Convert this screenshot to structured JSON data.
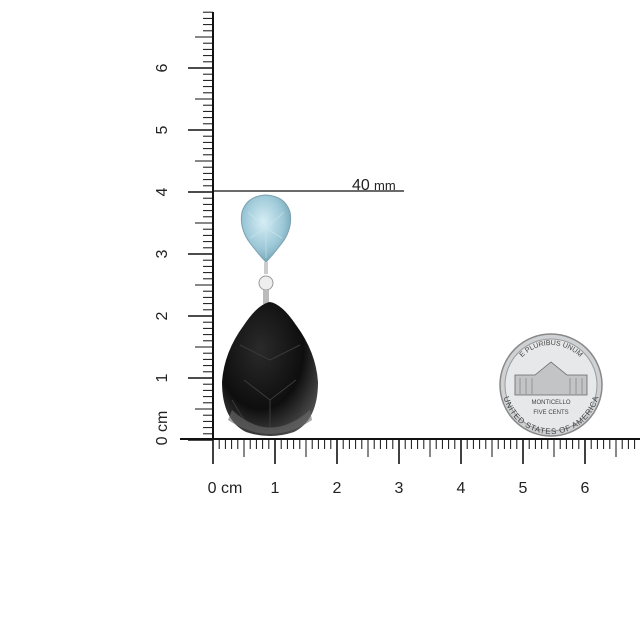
{
  "vertical_ruler": {
    "unit_label": "cm",
    "labels": [
      "0",
      "1",
      "2",
      "3",
      "4",
      "5",
      "6"
    ]
  },
  "horizontal_ruler": {
    "unit_label": "cm",
    "labels": [
      "0",
      "1",
      "2",
      "3",
      "4",
      "5",
      "6"
    ]
  },
  "measurement": {
    "value": "40",
    "unit": "mm"
  },
  "coin": {
    "top_text": "E PLURIBUS UNUM",
    "middle_text": "MONTICELLO",
    "value_text": "FIVE CENTS",
    "bottom_text": "UNITED STATES OF AMERICA"
  },
  "colors": {
    "aquamarine": "#9ec9d8",
    "onyx": "#141414",
    "metal": "#d8d8d8"
  }
}
